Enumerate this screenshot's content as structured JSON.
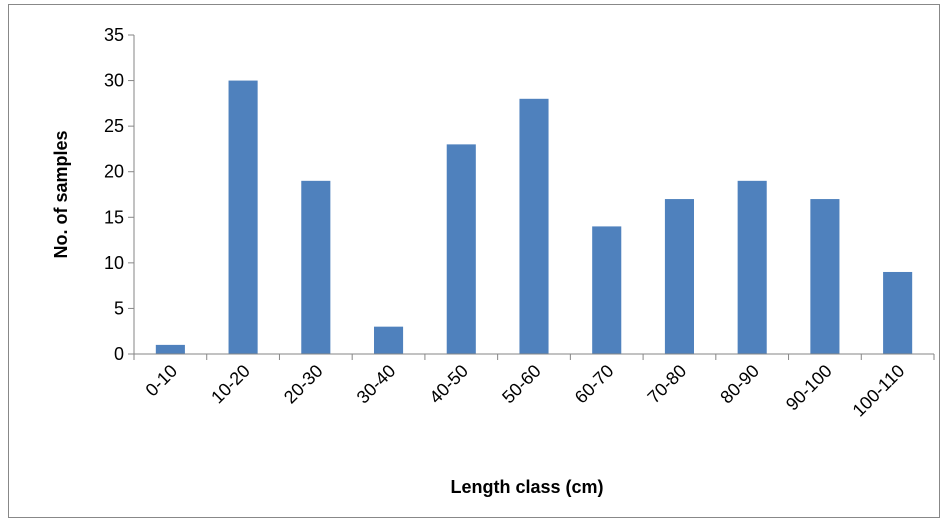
{
  "chart_data": {
    "type": "bar",
    "categories": [
      "0-10",
      "10-20",
      "20-30",
      "30-40",
      "40-50",
      "50-60",
      "60-70",
      "70-80",
      "80-90",
      "90-100",
      "100-110"
    ],
    "values": [
      1,
      30,
      19,
      3,
      23,
      28,
      14,
      17,
      19,
      17,
      9
    ],
    "title": "",
    "xlabel": "Length class (cm)",
    "ylabel": "No. of samples",
    "ylim": [
      0,
      35
    ],
    "yticks": [
      0,
      5,
      10,
      15,
      20,
      25,
      30,
      35
    ],
    "grid": false,
    "legend": "none",
    "bar_color": "#4f81bd"
  }
}
